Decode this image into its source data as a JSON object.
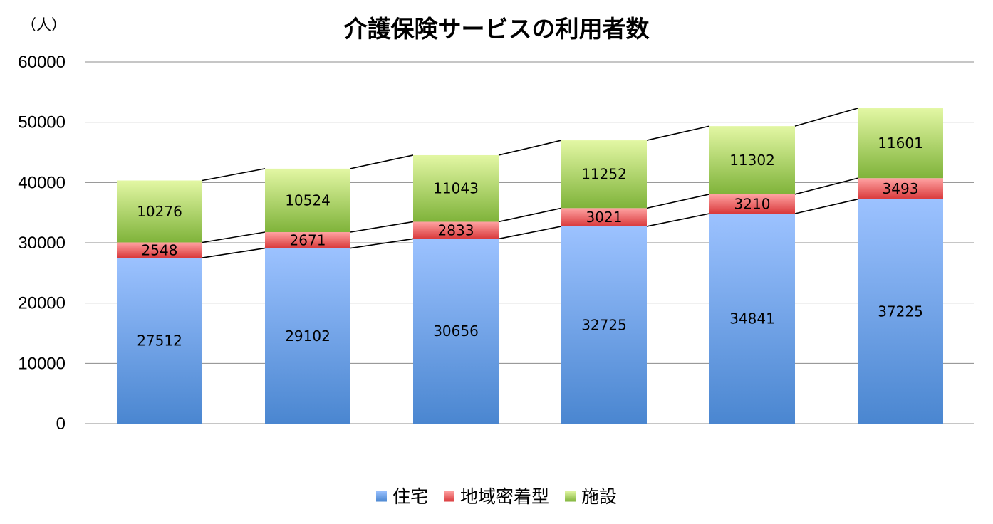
{
  "chart_data": {
    "type": "bar",
    "stacked": true,
    "title": "介護保険サービスの利用者数",
    "unit_label": "（人）",
    "ylim": [
      0,
      60000
    ],
    "yticks": [
      0,
      10000,
      20000,
      30000,
      40000,
      50000,
      60000
    ],
    "grid": true,
    "legend_position": "bottom",
    "series_lines": true,
    "categories": [
      "",
      "",
      "",
      "",
      "",
      ""
    ],
    "series": [
      {
        "name": "住宅",
        "values": [
          27512,
          29102,
          30656,
          32725,
          34841,
          37225
        ],
        "color": "#4a86d0",
        "color_light": "#9cc2ff"
      },
      {
        "name": "地域密着型",
        "values": [
          2548,
          2671,
          2833,
          3021,
          3210,
          3493
        ],
        "color": "#d9393b",
        "color_light": "#ffa3a3"
      },
      {
        "name": "施設",
        "values": [
          10276,
          10524,
          11043,
          11252,
          11302,
          11601
        ],
        "color": "#7fb33a",
        "color_light": "#e3f7a4"
      }
    ]
  }
}
